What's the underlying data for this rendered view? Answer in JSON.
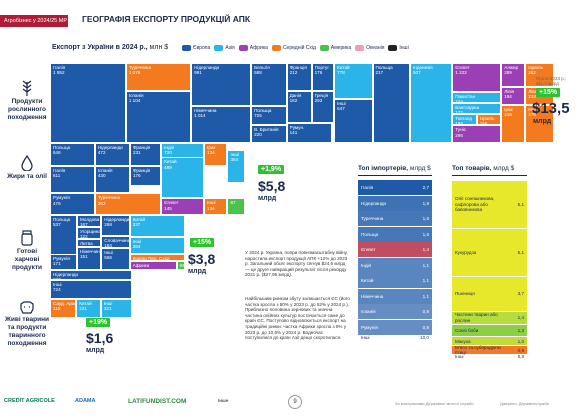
{
  "header": {
    "tag": "Агробізнес у 2024/25 МР",
    "title": "ГЕОГРАФІЯ ЕКСПОРТУ ПРОДУКЦІЙ АПК"
  },
  "treemap_title": {
    "text": "Експорт з України в 2024 р.,",
    "unit": "млн $"
  },
  "legend": [
    {
      "label": "Європа",
      "color": "#1e5aa8"
    },
    {
      "label": "Азія",
      "color": "#2ab4e8"
    },
    {
      "label": "Африка",
      "color": "#9b3fb5"
    },
    {
      "label": "Середній Схід",
      "color": "#f47a1f"
    },
    {
      "label": "Америка",
      "color": "#4cc24c"
    },
    {
      "label": "Океанія",
      "color": "#f29ac0"
    },
    {
      "label": "Інші",
      "color": "#222222"
    }
  ],
  "colors": {
    "eu": "#1e5aa8",
    "as": "#2ab4e8",
    "af": "#9b3fb5",
    "me": "#f47a1f",
    "am": "#4cc24c",
    "ot": "#222222",
    "growth": "#2fc12f",
    "imp": "#1e5aa8",
    "impHi": "#b01c35"
  },
  "categories": [
    {
      "name": "Продукти рослинного походження",
      "icon": "wheat-icon",
      "total": "$13,5",
      "unit": "млрд",
      "growth": "+15%",
      "prev": "Проти 2023 р.: $11,7 млрд"
    },
    {
      "name": "Жири та олії",
      "icon": "oil-drop-icon",
      "total": "$5,8",
      "unit": "млрд",
      "growth": "+1,9%",
      "prev": ""
    },
    {
      "name": "Готові харчові продукти",
      "icon": "jar-icon",
      "total": "$3,8",
      "unit": "млрд",
      "growth": "+15%",
      "prev": ""
    },
    {
      "name": "Живі тварини та продукти тваринного походження",
      "icon": "cow-icon",
      "total": "$1,6",
      "unit": "млрд",
      "growth": "+19%",
      "prev": ""
    }
  ],
  "chart_data": [
    {
      "type": "treemap",
      "title": "Продукти рослинного походження",
      "cells": [
        {
          "name": "Італія",
          "value": "1 952",
          "region": "eu"
        },
        {
          "name": "Туреччина",
          "value": "1 076",
          "region": "me"
        },
        {
          "name": "Нідерланди",
          "value": "991",
          "region": "eu"
        },
        {
          "name": "Бельгія",
          "value": "588",
          "region": "eu"
        },
        {
          "name": "Франція",
          "value": "212",
          "region": "eu"
        },
        {
          "name": "Португ.",
          "value": "176",
          "region": "eu"
        },
        {
          "name": "Китай",
          "value": "778",
          "region": "as"
        },
        {
          "name": "Іспанія",
          "value": "1 104",
          "region": "eu"
        },
        {
          "name": "Німеччина",
          "value": "1 014",
          "region": "eu"
        },
        {
          "name": "Польща",
          "value": "725",
          "region": "eu"
        },
        {
          "name": "В. Британія",
          "value": "220",
          "region": "eu"
        },
        {
          "name": "Данія",
          "value": "182",
          "region": "eu"
        },
        {
          "name": "Греція",
          "value": "293",
          "region": "eu"
        },
        {
          "name": "Румун.",
          "value": "141",
          "region": "eu"
        },
        {
          "name": "Інші",
          "value": "647",
          "region": "eu"
        },
        {
          "name": "Польща",
          "value": "217",
          "region": "eu"
        },
        {
          "name": "Індонезія",
          "value": "507",
          "region": "as"
        },
        {
          "name": "Єгипет",
          "value": "1 223",
          "region": "af"
        },
        {
          "name": "Пакистан",
          "value": "224",
          "region": "as"
        },
        {
          "name": "Бангладеш",
          "value": "172",
          "region": "as"
        },
        {
          "name": "Таїланд",
          "value": "159",
          "region": "as"
        },
        {
          "name": "Ізраїль",
          "value": "155",
          "region": "me"
        },
        {
          "name": "Туніс",
          "value": "296",
          "region": "af"
        },
        {
          "name": "Алжир",
          "value": "289",
          "region": "af"
        },
        {
          "name": "Ізраїль",
          "value": "262",
          "region": "me"
        },
        {
          "name": "Лівія",
          "value": "194",
          "region": "af"
        },
        {
          "name": "Ліван",
          "value": "233",
          "region": "me"
        },
        {
          "name": "Ірак",
          "value": "216",
          "region": "me"
        },
        {
          "name": "Інші",
          "value": "278",
          "region": "me"
        }
      ]
    },
    {
      "type": "treemap",
      "title": "Жири та олії",
      "cells": [
        {
          "name": "Польща",
          "value": "646",
          "region": "eu"
        },
        {
          "name": "Нідерланди",
          "value": "472",
          "region": "eu"
        },
        {
          "name": "Франція",
          "value": "231",
          "region": "eu"
        },
        {
          "name": "Італія",
          "value": "611",
          "region": "eu"
        },
        {
          "name": "Іспанія",
          "value": "430",
          "region": "eu"
        },
        {
          "name": "Франція",
          "value": "176",
          "region": "eu"
        },
        {
          "name": "Румунія",
          "value": "476",
          "region": "eu"
        },
        {
          "name": "Туреччина",
          "value": "362",
          "region": "me"
        },
        {
          "name": "Індія",
          "value": "720",
          "region": "as"
        },
        {
          "name": "Китай",
          "value": "489",
          "region": "as"
        },
        {
          "name": "Ірак",
          "value": "134",
          "region": "me"
        },
        {
          "name": "Інші",
          "value": "354",
          "region": "as"
        },
        {
          "name": "Єгипет",
          "value": "145",
          "region": "af"
        },
        {
          "name": "Інші",
          "value": "134",
          "region": "me"
        },
        {
          "name": "",
          "value": "67",
          "region": "am"
        }
      ]
    },
    {
      "type": "treemap",
      "title": "Готові харчові продукти",
      "cells": [
        {
          "name": "Польща",
          "value": "537",
          "region": "eu"
        },
        {
          "name": "Молдова",
          "value": "167",
          "region": "eu"
        },
        {
          "name": "Угорщина",
          "value": "122",
          "region": "eu"
        },
        {
          "name": "Литва",
          "value": "115",
          "region": "eu"
        },
        {
          "name": "Румунія",
          "value": "171",
          "region": "eu"
        },
        {
          "name": "Нідерланди",
          "value": "268",
          "region": "eu"
        },
        {
          "name": "Словаччина",
          "value": "184",
          "region": "eu"
        },
        {
          "name": "Німеччина",
          "value": "151",
          "region": "eu"
        },
        {
          "name": "Інші",
          "value": "556",
          "region": "eu"
        },
        {
          "name": "Китай",
          "value": "337",
          "region": "as"
        },
        {
          "name": "Інші",
          "value": "384",
          "region": "as"
        },
        {
          "name": "Країни Пер. Сход",
          "value": "240",
          "region": "me"
        },
        {
          "name": "Африка",
          "value": "227",
          "region": "af"
        },
        {
          "name": "",
          "value": "66",
          "region": "am"
        }
      ]
    },
    {
      "type": "treemap",
      "title": "Живі тварини та продукти тваринного походження",
      "cells": [
        {
          "name": "Нідерланди",
          "value": "237",
          "region": "eu"
        },
        {
          "name": "Інші",
          "value": "724",
          "region": "eu"
        },
        {
          "name": "Сауд. Аравія",
          "value": "118",
          "region": "me"
        },
        {
          "name": "Китай",
          "value": "231",
          "region": "as"
        },
        {
          "name": "Інші",
          "value": "321",
          "region": "as"
        }
      ]
    },
    {
      "type": "bar",
      "title": "Топ імпортерів,",
      "unit": "млрд $",
      "categories": [
        "Італія",
        "Нідерланди",
        "Туреччина",
        "Польща",
        "Єгипет",
        "Індія",
        "Китай",
        "Німеччина",
        "Іспанія",
        "Румунія",
        "Інші"
      ],
      "values": [
        2.7,
        1.8,
        1.6,
        1.6,
        1.4,
        1.1,
        1.1,
        1.1,
        0.8,
        0.8,
        10.0
      ],
      "display": [
        "2,7",
        "1,8",
        "1,6",
        "1,6",
        "1,4",
        "1,1",
        "1,1",
        "1,1",
        "0,8",
        "0,8",
        "10,0"
      ],
      "highlight": [
        false,
        false,
        false,
        false,
        true,
        false,
        false,
        false,
        false,
        false,
        false
      ]
    },
    {
      "type": "bar",
      "title": "Топ товарів,",
      "unit": "млрд $",
      "categories": [
        "Олії соняшникова, сафлорова або бавовникова",
        "Кукурудза",
        "Пшениця",
        "Частини тварин або рослин",
        "Соєві боби",
        "Макуха",
        "М'ясо та субпродукти птиці",
        "Інші"
      ],
      "values": [
        5.1,
        5.1,
        3.7,
        1.4,
        1.3,
        1.0,
        0.9,
        5.8
      ],
      "display": [
        "5,1",
        "5,1",
        "3,7",
        "1,4",
        "1,3",
        "1,0",
        "0,9",
        "5,8"
      ],
      "colors": [
        "#e8e82a",
        "#e8e82a",
        "#e8e82a",
        "#b6dd3c",
        "#8ccf44",
        "#c1db3c",
        "#f07a2a",
        ""
      ]
    }
  ],
  "paragraphs": [
    "У 2024 р. Україна, попри повномасштабну війну, наростила експорт продукції АПК +12% до 2023 р. Загальний обсяг експорту сягнув $24,6 млрд — це друге найкращий результат після рекорду 2021 р. ($27,95 млрд).",
    "Найбільшим ринком збуту залишається ЄС (його частка зросла з 50% у 2023 р. до 52% у 2024 р.). Приблизно половина зернових та значна частина олійних культур постачається саме до країн ЄС. Поступово відновлюється експорт на традиційні ринки: частка Африки зросла з 9% у 2023 р. до 10,6% у 2024 р. Водночас поступилися до країн Азії дещо скоротилася."
  ],
  "footer": {
    "logos": [
      "CREDIT AGRICOLE",
      "ADAMA",
      "LATIFUNDIST.COM",
      "Інше"
    ],
    "page": "9",
    "note_left": "За матеріалами Державної митної служби",
    "note_right": "Джерело: Держмитслужба"
  }
}
